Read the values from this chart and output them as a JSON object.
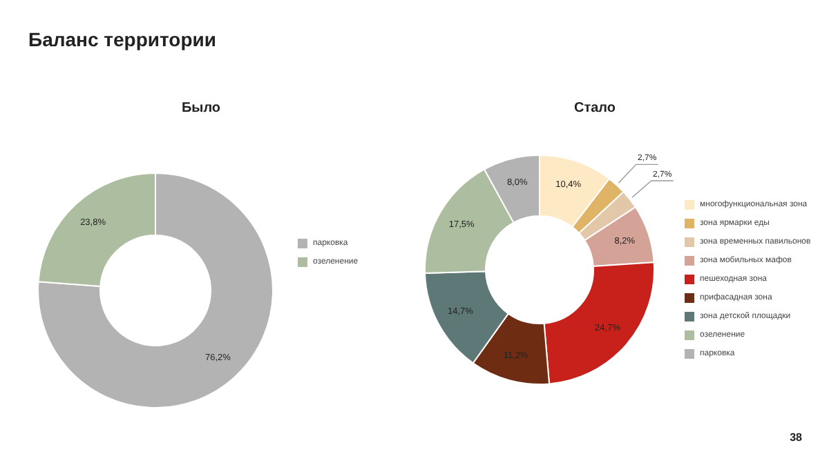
{
  "chart_data": [
    {
      "type": "donut",
      "title": "Было",
      "categories": [
        "парковка",
        "озеленение"
      ],
      "values": [
        76.2,
        23.8
      ],
      "colors": [
        "#b3b3b3",
        "#adbd9f"
      ],
      "value_labels": [
        "76,2%",
        "23,8%"
      ],
      "legend": "right",
      "annotations": [
        "Баланс территории"
      ]
    },
    {
      "type": "donut",
      "title": "Стало",
      "categories": [
        "многофункциональная зона",
        "зона ярмарки еды",
        "зона временных павильонов",
        "зона мобильных мафов",
        "пешеходная зона",
        "прифасадная зона",
        "зона детской площадки",
        "озеленение",
        "парковка"
      ],
      "values": [
        10.4,
        2.7,
        2.7,
        8.2,
        24.7,
        11.2,
        14.7,
        17.5,
        8.0
      ],
      "colors": [
        "#fde9c4",
        "#e0b466",
        "#e2c7a8",
        "#d4a296",
        "#c8201a",
        "#6e2d12",
        "#5e7878",
        "#adbd9f",
        "#b3b3b3"
      ],
      "value_labels": [
        "10,4%",
        "2,7%",
        "2,7%",
        "8,2%",
        "24,7%",
        "11,2%",
        "14,7%",
        "17,5%",
        "8,0%"
      ],
      "legend": "right",
      "annotations": [
        "38"
      ]
    }
  ]
}
